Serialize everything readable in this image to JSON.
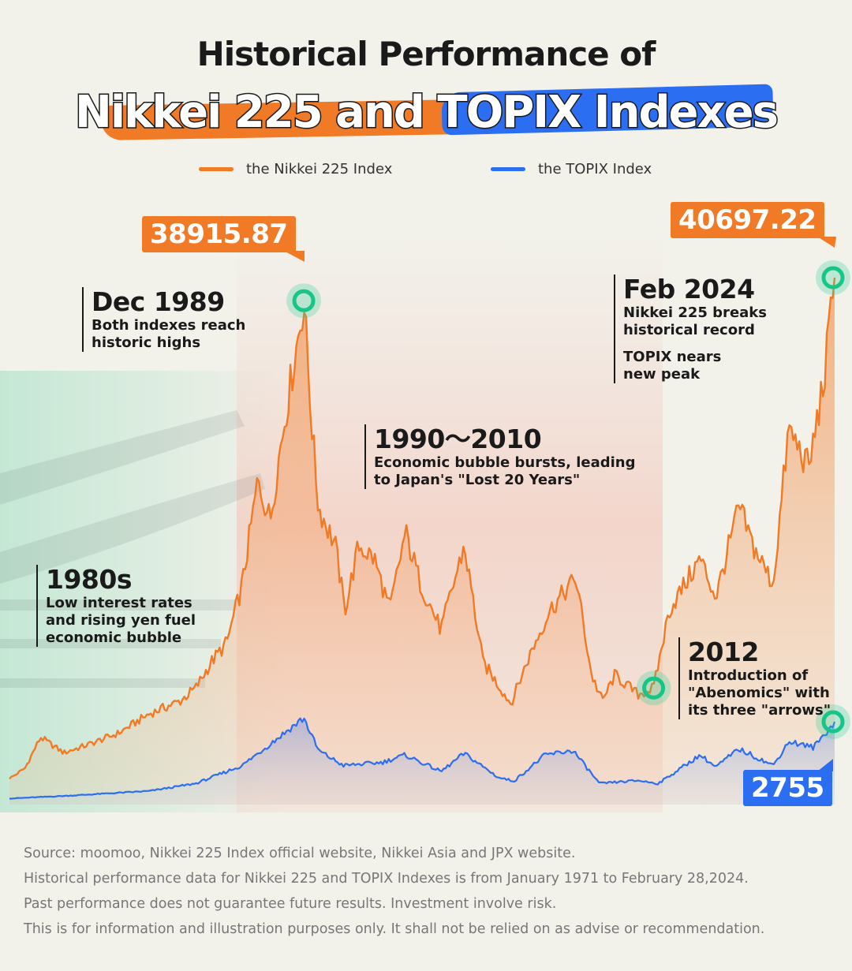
{
  "title": {
    "line1": "Historical Performance of",
    "line2": "Nikkei 225 and TOPIX Indexes"
  },
  "legend": [
    {
      "label": "the Nikkei 225 Index",
      "color": "#f07a26"
    },
    {
      "label": "the TOPIX Index",
      "color": "#2b6ef2"
    }
  ],
  "annotations": {
    "a1980s": {
      "head": "1980s",
      "body": "Low interest rates\nand rising yen fuel\neconomic bubble"
    },
    "a1989": {
      "head": "Dec 1989",
      "body": "Both indexes reach\nhistoric highs"
    },
    "a1990": {
      "head": "1990～2010",
      "body": "Economic bubble bursts, leading\nto Japan's \"Lost 20 Years\""
    },
    "a2012": {
      "head": "2012",
      "body": "Introduction of\n\"Abenomics\" with\nits three \"arrows\""
    },
    "a2024": {
      "head": "Feb 2024",
      "body": "Nikkei 225 breaks\nhistorical record",
      "body2": "TOPIX nears\nnew peak"
    }
  },
  "callouts": {
    "peak1989": "38915.87",
    "peak2024": "40697.22",
    "topix2024": "2755"
  },
  "source_lines": [
    "Source: moomoo, Nikkei 225 Index official website, Nikkei Asia and JPX website.",
    "Historical performance data for Nikkei 225 and TOPIX Indexes is from January 1971 to February 28,2024.",
    "Past performance does not guarantee future results. Investment involve risk.",
    "This is for information and illustration purposes only. It shall not be relied on as advise or recommendation."
  ],
  "chart_data": {
    "type": "line",
    "title": "Historical Performance of Nikkei 225 and TOPIX Indexes",
    "xlabel": "",
    "ylabel": "",
    "xlim": [
      1971.0,
      2024.16
    ],
    "ylim": [
      0,
      42000
    ],
    "series": [
      {
        "name": "the Nikkei 225 Index",
        "color": "#f07a26",
        "x": [
          1971.0,
          1972.0,
          1973.0,
          1974.5,
          1976.0,
          1978.0,
          1980.0,
          1982.0,
          1983.0,
          1984.0,
          1985.0,
          1986.0,
          1987.0,
          1987.8,
          1988.5,
          1989.96,
          1990.5,
          1990.9,
          1992.0,
          1992.6,
          1993.5,
          1994.5,
          1995.5,
          1996.5,
          1997.5,
          1998.8,
          2000.3,
          2001.5,
          2003.3,
          2004.5,
          2005.8,
          2007.5,
          2008.5,
          2009.2,
          2010.0,
          2011.5,
          2012.5,
          2013.5,
          2015.5,
          2016.5,
          2018.0,
          2018.9,
          2020.2,
          2021.2,
          2022.5,
          2023.5,
          2024.16
        ],
        "values": [
          2000,
          2800,
          5200,
          4000,
          4600,
          5500,
          7000,
          8000,
          9000,
          11000,
          12500,
          17000,
          25000,
          22000,
          28000,
          38915.87,
          29000,
          23000,
          20000,
          15000,
          20000,
          19000,
          15000,
          21000,
          17000,
          13500,
          20000,
          11000,
          7800,
          11500,
          15000,
          17500,
          10000,
          8000,
          10000,
          8500,
          9000,
          15000,
          19000,
          16000,
          23000,
          20000,
          17000,
          29000,
          26000,
          33000,
          40697.22
        ]
      },
      {
        "name": "the TOPIX Index",
        "color": "#2b6ef2",
        "x": [
          1971.0,
          1975.0,
          1980.0,
          1983.0,
          1986.0,
          1987.5,
          1989.96,
          1990.9,
          1992.5,
          1995.0,
          1996.5,
          1998.8,
          2000.3,
          2002.5,
          2003.5,
          2005.5,
          2007.3,
          2009.0,
          2011.5,
          2012.8,
          2015.5,
          2016.5,
          2018.0,
          2020.2,
          2021.2,
          2022.8,
          2024.16
        ],
        "values": [
          200,
          300,
          450,
          700,
          1300,
          1900,
          2881,
          1800,
          1300,
          1400,
          1650,
          1100,
          1700,
          900,
          780,
          1650,
          1800,
          700,
          800,
          700,
          1650,
          1250,
          1850,
          1300,
          2100,
          1900,
          2755
        ]
      }
    ],
    "annotations": [
      {
        "label": "38915.87",
        "x": 1989.96,
        "series": "the Nikkei 225 Index"
      },
      {
        "label": "40697.22",
        "x": 2024.16,
        "series": "the Nikkei 225 Index"
      },
      {
        "label": "2755",
        "x": 2024.16,
        "series": "the TOPIX Index"
      }
    ]
  }
}
